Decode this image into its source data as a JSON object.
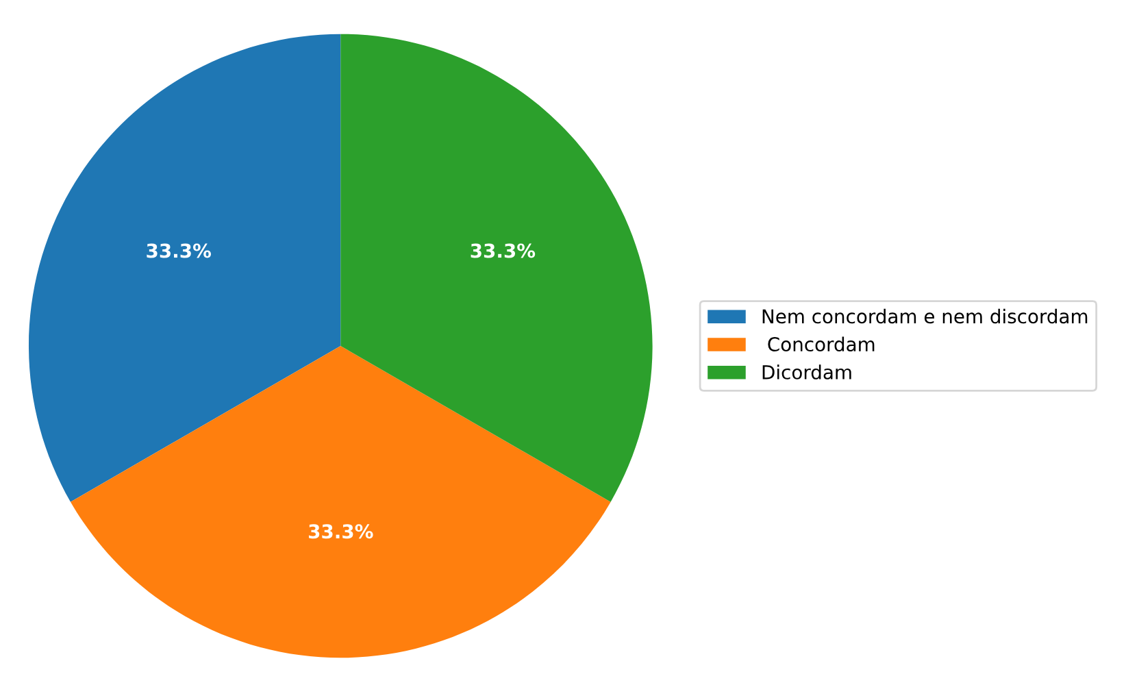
{
  "chart_data": {
    "type": "pie",
    "categories": [
      "Nem concordam e nem discordam",
      " Concordam",
      "Dicordam"
    ],
    "values": [
      33.3,
      33.3,
      33.3
    ],
    "colors": [
      "#1f77b4",
      "#ff7f0e",
      "#2ca02c"
    ],
    "value_labels": [
      "33.3%",
      "33.3%",
      "33.3%"
    ],
    "legend": "right"
  }
}
